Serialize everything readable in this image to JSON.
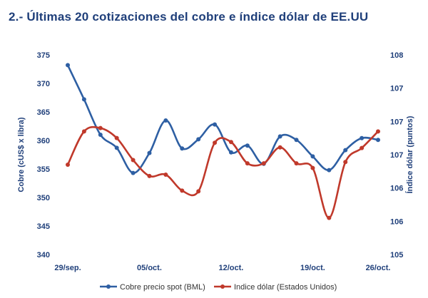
{
  "title": "2.- Últimas 20 cotizaciones del cobre e índice dólar de EE.UU",
  "chart_data": {
    "type": "line",
    "x_tick_labels": [
      "29/sep.",
      "05/oct.",
      "12/oct.",
      "19/oct.",
      "26/oct."
    ],
    "x_count": 20,
    "ylabel": "Cobre (cUS$ x libra)",
    "y2label": "Índice dólar (puntos)",
    "ylim": [
      340,
      375
    ],
    "yticks": [
      340,
      345,
      350,
      355,
      360,
      365,
      370,
      375
    ],
    "y2ticks": [
      "105",
      "106",
      "106",
      "107",
      "107",
      "107",
      "108"
    ],
    "y2ticks_pos": [
      105,
      105.5,
      106,
      106.5,
      107,
      107.5,
      108
    ],
    "y2lim": [
      105,
      108
    ],
    "grid": false,
    "legend_position": "bottom",
    "series": [
      {
        "name": "Cobre precio spot (BML)",
        "axis": "left",
        "color": "#2e5fa3",
        "values": [
          373.2,
          367.2,
          361.0,
          358.7,
          354.3,
          357.8,
          363.5,
          358.6,
          360.2,
          362.8,
          357.9,
          359.1,
          355.9,
          360.7,
          360.1,
          357.2,
          354.8,
          358.3,
          360.4,
          360.1
        ]
      },
      {
        "name": "Indice dólar (Estados Unidos)",
        "axis": "right",
        "color": "#c0392b",
        "values": [
          106.35,
          106.85,
          106.9,
          106.75,
          106.42,
          106.18,
          106.2,
          105.96,
          105.95,
          106.68,
          106.69,
          106.37,
          106.37,
          106.61,
          106.37,
          106.3,
          105.55,
          106.39,
          106.6,
          106.85
        ]
      }
    ]
  }
}
